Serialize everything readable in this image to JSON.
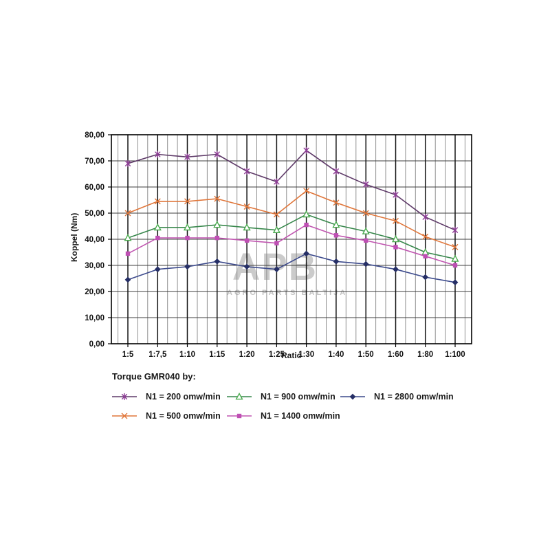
{
  "chart_data": {
    "type": "line",
    "title": "",
    "legend_title": "Torque GMR040 by:",
    "xlabel": "Ratio",
    "ylabel": "Koppel (Nm)",
    "ylim": [
      0,
      80
    ],
    "y_tick_step": 10,
    "y_tick_labels": [
      "0,00",
      "10,00",
      "20,00",
      "30,00",
      "40,00",
      "50,00",
      "60,00",
      "70,00",
      "80,00"
    ],
    "categories": [
      "1:5",
      "1:7,5",
      "1:10",
      "1:15",
      "1:20",
      "1:25",
      "1:30",
      "1:40",
      "1:50",
      "1:60",
      "1:80",
      "1:100"
    ],
    "series": [
      {
        "name": "N1 = 200 omw/min",
        "line_color": "#5E3A68",
        "marker_color": "#8E3C96",
        "marker": "star",
        "values": [
          69,
          72.5,
          71.5,
          72.5,
          66,
          62,
          74,
          66,
          61,
          57,
          48.5,
          43.5
        ]
      },
      {
        "name": "N1 = 500 omw/min",
        "line_color": "#E0763A",
        "marker_color": "#E0763A",
        "marker": "x",
        "values": [
          50,
          54.5,
          54.5,
          55.5,
          52.5,
          49.5,
          58.5,
          54,
          50,
          47,
          41,
          37
        ]
      },
      {
        "name": "N1 = 900 omw/min",
        "line_color": "#37874B",
        "marker_color": "#4AAB4E",
        "marker": "triangle-open",
        "values": [
          40.5,
          44.5,
          44.5,
          45.5,
          44.5,
          43.5,
          49.5,
          45.5,
          43,
          40,
          35,
          32.5
        ]
      },
      {
        "name": "N1 = 1400 omw/min",
        "line_color": "#C055B0",
        "marker_color": "#BF4FB4",
        "marker": "square",
        "values": [
          34.5,
          40.5,
          40.5,
          40.5,
          39.5,
          38.5,
          45.5,
          41.5,
          39.5,
          37,
          33.5,
          30
        ]
      },
      {
        "name": "N1 = 2800 omw/min",
        "line_color": "#3C4A8C",
        "marker_color": "#262F66",
        "marker": "diamond",
        "values": [
          24.5,
          28.5,
          29.5,
          31.5,
          29.5,
          28.5,
          34.5,
          31.5,
          30.5,
          28.5,
          25.5,
          23.5
        ]
      }
    ],
    "grid": {
      "legend_position": "bottom",
      "grid_on": true,
      "h_line_color": "#3c3c3c",
      "v_major_color": "#141414",
      "v_minor_color": "#8f8f8f",
      "border_color": "#000000"
    },
    "watermark": {
      "line1": "APB",
      "line2": "AGRO PARTS BALTIJA",
      "color": "#cbcbcb"
    }
  }
}
